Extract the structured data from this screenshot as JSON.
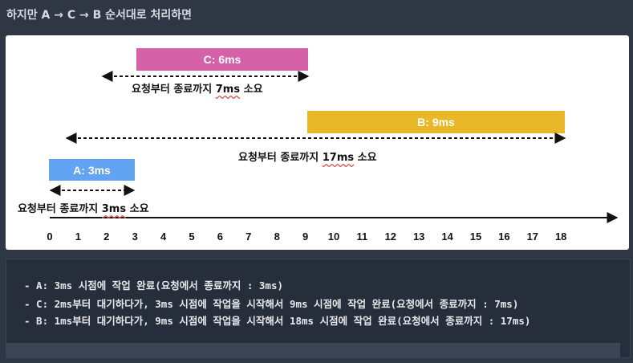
{
  "heading": "하지만 A → C → B 순서대로 처리하면",
  "bars": {
    "c": {
      "label": "C: 6ms",
      "color": "#d561a8"
    },
    "b": {
      "label": "B: 9ms",
      "color": "#e8b829"
    },
    "a": {
      "label": "A: 3ms",
      "color": "#63a4f2"
    }
  },
  "durations": {
    "c": {
      "prefix": "요청부터 종료까지 ",
      "num": "7ms",
      "suffix": " 소요"
    },
    "b": {
      "prefix": "요청부터 종료까지 ",
      "num": "17ms",
      "suffix": " 소요"
    },
    "a": {
      "prefix": "요청부터 종료까지 ",
      "num": "3ms",
      "suffix": " 소요"
    }
  },
  "axis": {
    "ticks": [
      "0",
      "1",
      "2",
      "3",
      "4",
      "5",
      "6",
      "7",
      "8",
      "9",
      "10",
      "11",
      "12",
      "13",
      "14",
      "15",
      "16",
      "17",
      "18"
    ]
  },
  "code_lines": [
    "- A: 3ms 시점에 작업 완료(요청에서 종료까지 : 3ms)",
    "- C: 2ms부터 대기하다가, 3ms 시점에 작업을 시작해서 9ms 시점에 작업 완료(요청에서 종료까지 : 7ms)",
    "- B: 1ms부터 대기하다가, 9ms 시점에 작업을 시작해서 18ms 시점에 작업 완료(요청에서 종료까지 : 17ms)"
  ]
}
